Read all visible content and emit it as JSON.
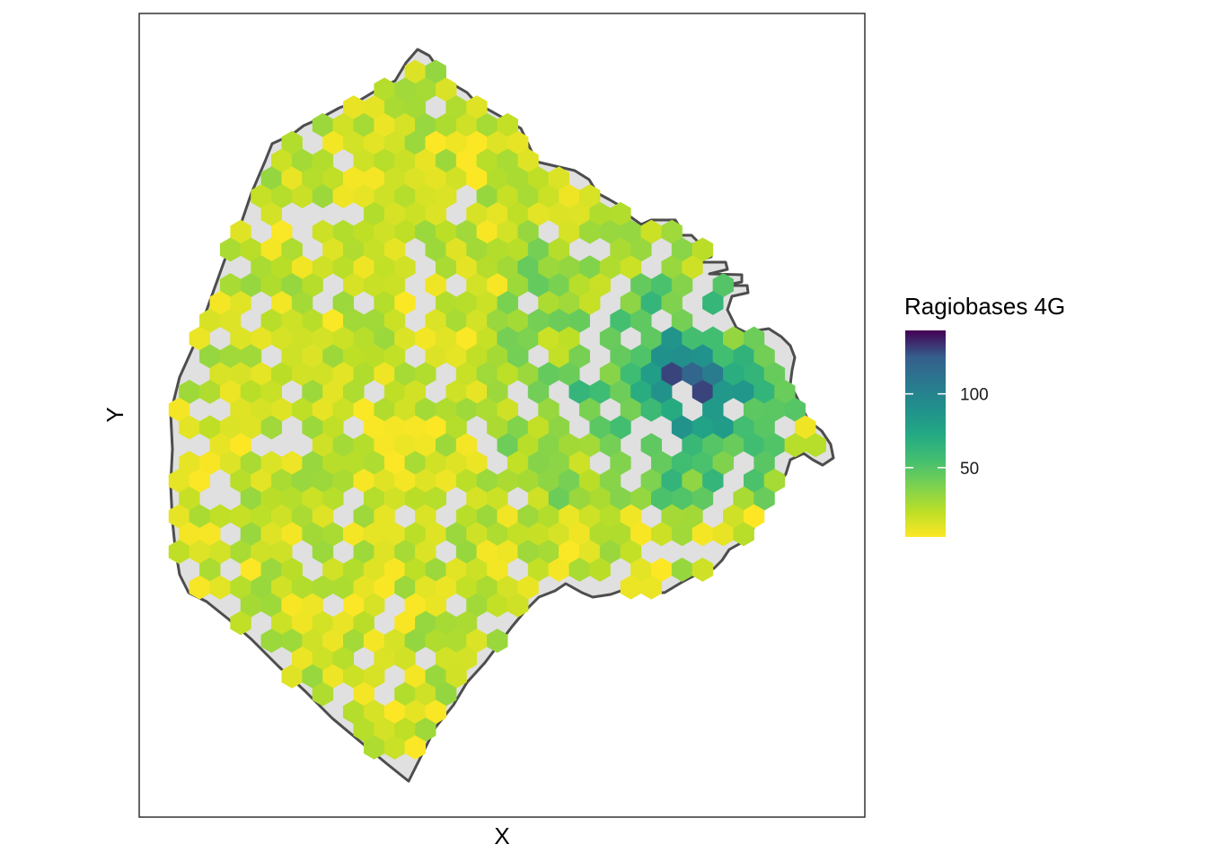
{
  "chart_data": {
    "type": "heatmap",
    "subtype": "hexbin-map",
    "xlabel": "X",
    "ylabel": "Y",
    "axis_ticks_shown": false,
    "grid": false,
    "legend": {
      "title": "Ragiobases 4G",
      "placement": "right",
      "colormap": "viridis (reversed: low = yellow, high = dark purple)",
      "range": [
        3,
        143
      ],
      "ticks": [
        50,
        100
      ],
      "tick_labels": [
        "50",
        "100"
      ]
    },
    "colors": {
      "panel_border": "#333333",
      "region_fill": "#e0e0e0",
      "region_outline": "#4d4d4d",
      "high": "#440154",
      "mid": "#21908c",
      "low": "#fde725"
    },
    "description_of_values": "Most hexagons 5-25; hotspot cluster in east with maximum near 140",
    "hotspot_values": [
      143,
      130,
      120,
      105,
      95,
      90,
      80,
      75,
      70
    ]
  }
}
